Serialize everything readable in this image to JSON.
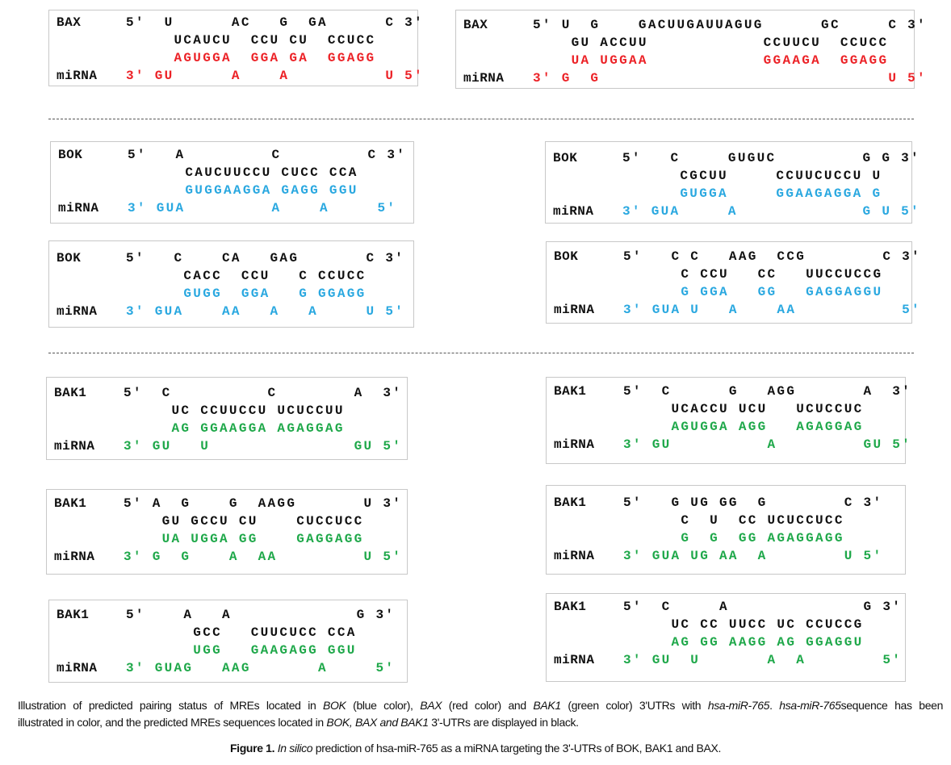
{
  "colors": {
    "BAX": "#ec2227",
    "BOK": "#2aa8e0",
    "BAK1": "#1fa84a",
    "target": "#111111"
  },
  "alignments": [
    {
      "gene": "BAX",
      "color": "red",
      "label2": "miRNA",
      "top": "5'  U      AC   G  GA      C 3'",
      "mre": "     UCAUCU  CCU CU  CCUCC",
      "pair": "     AGUGGA  GGA GA  GGAGG",
      "mirna": "3' GU      A    A          U 5'"
    },
    {
      "gene": "BAX",
      "color": "red",
      "label2": "miRNA",
      "top": "5' U  G    GACUUGAUUAGUG      GC     C 3'",
      "mre": "    GU ACCUU            CCUUCU  CCUCC",
      "pair": "    UA UGGAA            GGAAGA  GGAGG",
      "mirna": "3' G  G                              U 5'"
    },
    {
      "gene": "BOK",
      "color": "blue",
      "label2": "miRNA",
      "top": "5'   A         C         C 3'",
      "mre": "      CAUCUUCCU CUCC CCA",
      "pair": "      GUGGAAGGA GAGG GGU",
      "mirna": "3' GUA         A    A     5'"
    },
    {
      "gene": "BOK",
      "color": "blue",
      "label2": "miRNA",
      "top": "5'   C     GUGUC         G G 3'",
      "mre": "      CGCUU     CCUUCUCCU U",
      "pair": "      GUGGA     GGAAGAGGA G",
      "mirna": "3' GUA     A             G U 5'"
    },
    {
      "gene": "BOK",
      "color": "blue",
      "label2": "miRNA",
      "top": "5'   C    CA   GAG       C 3'",
      "mre": "      CACC  CCU   C CCUCC",
      "pair": "      GUGG  GGA   G GGAGG",
      "mirna": "3' GUA    AA   A   A     U 5'"
    },
    {
      "gene": "BOK",
      "color": "blue",
      "label2": "miRNA",
      "top": "5'   C C   AAG  CCG        C 3'",
      "mre": "      C CCU   CC   UUCCUCCG",
      "pair": "      G GGA   GG   GAGGAGGU",
      "mirna": "3' GUA U   A    AA           5'"
    },
    {
      "gene": "BAK1",
      "color": "green",
      "label2": "miRNA",
      "top": "5'  C          C        A  3'",
      "mre": "     UC CCUUCCU UCUCCUU",
      "pair": "     AG GGAAGGA AGAGGAG",
      "mirna": "3' GU   U               GU 5'"
    },
    {
      "gene": "BAK1",
      "color": "green",
      "label2": "miRNA",
      "top": "5'  C      G   AGG       A  3'",
      "mre": "     UCACCU UCU   UCUCCUC",
      "pair": "     AGUGGA AGG   AGAGGAG",
      "mirna": "3' GU          A         GU 5'"
    },
    {
      "gene": "BAK1",
      "color": "green",
      "label2": "miRNA",
      "top": "5' A  G    G  AAGG       U 3'",
      "mre": "    GU GCCU CU    CUCCUCC",
      "pair": "    UA UGGA GG    GAGGAGG",
      "mirna": "3' G  G    A  AA         U 5'"
    },
    {
      "gene": "BAK1",
      "color": "green",
      "label2": "miRNA",
      "top": "5'   G UG GG  G        C 3'",
      "mre": "      C  U  CC UCUCCUCC",
      "pair": "      G  G  GG AGAGGAGG",
      "mirna": "3' GUA UG AA  A        U 5'"
    },
    {
      "gene": "BAK1",
      "color": "green",
      "label2": "miRNA",
      "top": "5'    A   A             G 3'",
      "mre": "       GCC   CUUCUCC CCA",
      "pair": "       UGG   GAAGAGG GGU",
      "mirna": "3' GUAG   AAG       A     5'"
    },
    {
      "gene": "BAK1",
      "color": "green",
      "label2": "miRNA",
      "top": "5'  C     A              G 3'",
      "mre": "     UC CC UUCC UC CCUCCG",
      "pair": "     AG GG AAGG AG GGAGGU",
      "mirna": "3' GU  U       A  A        5'"
    }
  ],
  "caption": {
    "line1": [
      {
        "t": "Illustration of predicted pairing status of MREs located in ",
        "i": false
      },
      {
        "t": "BOK",
        "i": true
      },
      {
        "t": " (blue color), ",
        "i": false
      },
      {
        "t": "BAX",
        "i": true
      },
      {
        "t": " (red color) and ",
        "i": false
      },
      {
        "t": "BAK1",
        "i": true
      },
      {
        "t": " (green color) 3'UTRs with ",
        "i": false
      },
      {
        "t": "hsa-miR-765",
        "i": true
      },
      {
        "t": ". ",
        "i": false
      },
      {
        "t": "hsa-miR-765",
        "i": true
      },
      {
        "t": "sequence has been",
        "i": false
      }
    ],
    "line2": [
      {
        "t": "illustrated in color, and the predicted MREs sequences located in ",
        "i": false
      },
      {
        "t": "BOK, BAX  and BAK1",
        "i": true
      },
      {
        "t": " 3'-UTRs are displayed in black.",
        "i": false
      }
    ]
  },
  "figure_caption": {
    "label": "Figure 1.",
    "italic": "In silico",
    "text": " prediction of hsa-miR-765 as a miRNA targeting the 3'-UTRs  of BOK, BAK1 and BAX."
  }
}
